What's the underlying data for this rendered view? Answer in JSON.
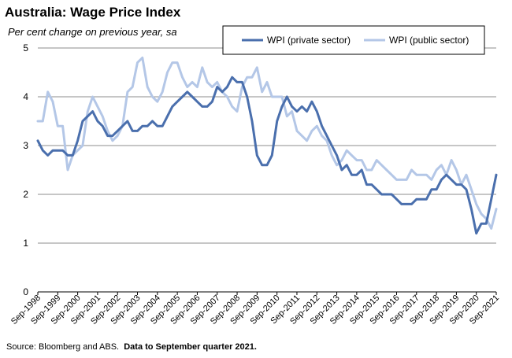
{
  "title": "Australia: Wage Price Index",
  "subtitle": "Per cent change on previous year, sa",
  "source": {
    "text": "Source: Bloomberg and ABS.",
    "note": "Data to September quarter  2021."
  },
  "chart_data": {
    "type": "line",
    "title": "Australia: Wage Price Index",
    "subtitle": "Per cent change on previous year, sa",
    "ylim": [
      0,
      5
    ],
    "yticks": [
      0,
      1,
      2,
      3,
      4,
      5
    ],
    "grid": true,
    "legend_position": "top-right",
    "x_tick_labels": [
      "Sep-1998",
      "Sep-1999",
      "Sep-2000",
      "Sep-2001",
      "Sep-2002",
      "Sep-2003",
      "Sep-2004",
      "Sep-2005",
      "Sep-2006",
      "Sep-2007",
      "Sep-2008",
      "Sep-2009",
      "Sep-2010",
      "Sep-2011",
      "Sep-2012",
      "Sep-2013",
      "Sep-2014",
      "Sep-2015",
      "Sep-2016",
      "Sep-2017",
      "Sep-2018",
      "Sep-2019",
      "Sep-2020",
      "Sep-2021"
    ],
    "x_frequency": "quarterly",
    "x_start": "Sep-1998",
    "series": [
      {
        "name": "WPI (private sector)",
        "color": "#4a6fad",
        "values": [
          3.1,
          2.9,
          2.8,
          2.9,
          2.9,
          2.9,
          2.8,
          2.8,
          3.1,
          3.5,
          3.6,
          3.7,
          3.5,
          3.4,
          3.2,
          3.2,
          3.3,
          3.4,
          3.5,
          3.3,
          3.3,
          3.4,
          3.4,
          3.5,
          3.4,
          3.4,
          3.6,
          3.8,
          3.9,
          4.0,
          4.1,
          4.0,
          3.9,
          3.8,
          3.8,
          3.9,
          4.2,
          4.1,
          4.2,
          4.4,
          4.3,
          4.3,
          4.0,
          3.5,
          2.8,
          2.6,
          2.6,
          2.8,
          3.5,
          3.8,
          4.0,
          3.8,
          3.7,
          3.8,
          3.7,
          3.9,
          3.7,
          3.4,
          3.2,
          3.0,
          2.8,
          2.5,
          2.6,
          2.4,
          2.4,
          2.5,
          2.2,
          2.2,
          2.1,
          2.0,
          2.0,
          2.0,
          1.9,
          1.8,
          1.8,
          1.8,
          1.9,
          1.9,
          1.9,
          2.1,
          2.1,
          2.3,
          2.4,
          2.3,
          2.2,
          2.2,
          2.1,
          1.7,
          1.2,
          1.4,
          1.4,
          1.9,
          2.4
        ]
      },
      {
        "name": "WPI (public sector)",
        "color": "#b4c7e7",
        "values": [
          3.5,
          3.5,
          4.1,
          3.9,
          3.4,
          3.4,
          2.5,
          2.8,
          2.9,
          3.0,
          3.7,
          4.0,
          3.8,
          3.6,
          3.3,
          3.1,
          3.2,
          3.4,
          4.1,
          4.2,
          4.7,
          4.8,
          4.2,
          4.0,
          3.9,
          4.1,
          4.5,
          4.7,
          4.7,
          4.4,
          4.2,
          4.3,
          4.2,
          4.6,
          4.3,
          4.2,
          4.3,
          4.1,
          4.0,
          3.8,
          3.7,
          4.2,
          4.4,
          4.4,
          4.6,
          4.1,
          4.3,
          4.0,
          4.0,
          4.0,
          3.6,
          3.7,
          3.3,
          3.2,
          3.1,
          3.3,
          3.4,
          3.2,
          3.1,
          2.8,
          2.6,
          2.7,
          2.9,
          2.8,
          2.7,
          2.7,
          2.5,
          2.5,
          2.7,
          2.6,
          2.5,
          2.4,
          2.3,
          2.3,
          2.3,
          2.5,
          2.4,
          2.4,
          2.4,
          2.3,
          2.5,
          2.6,
          2.4,
          2.7,
          2.5,
          2.2,
          2.4,
          2.1,
          1.8,
          1.6,
          1.5,
          1.3,
          1.7
        ]
      }
    ]
  }
}
